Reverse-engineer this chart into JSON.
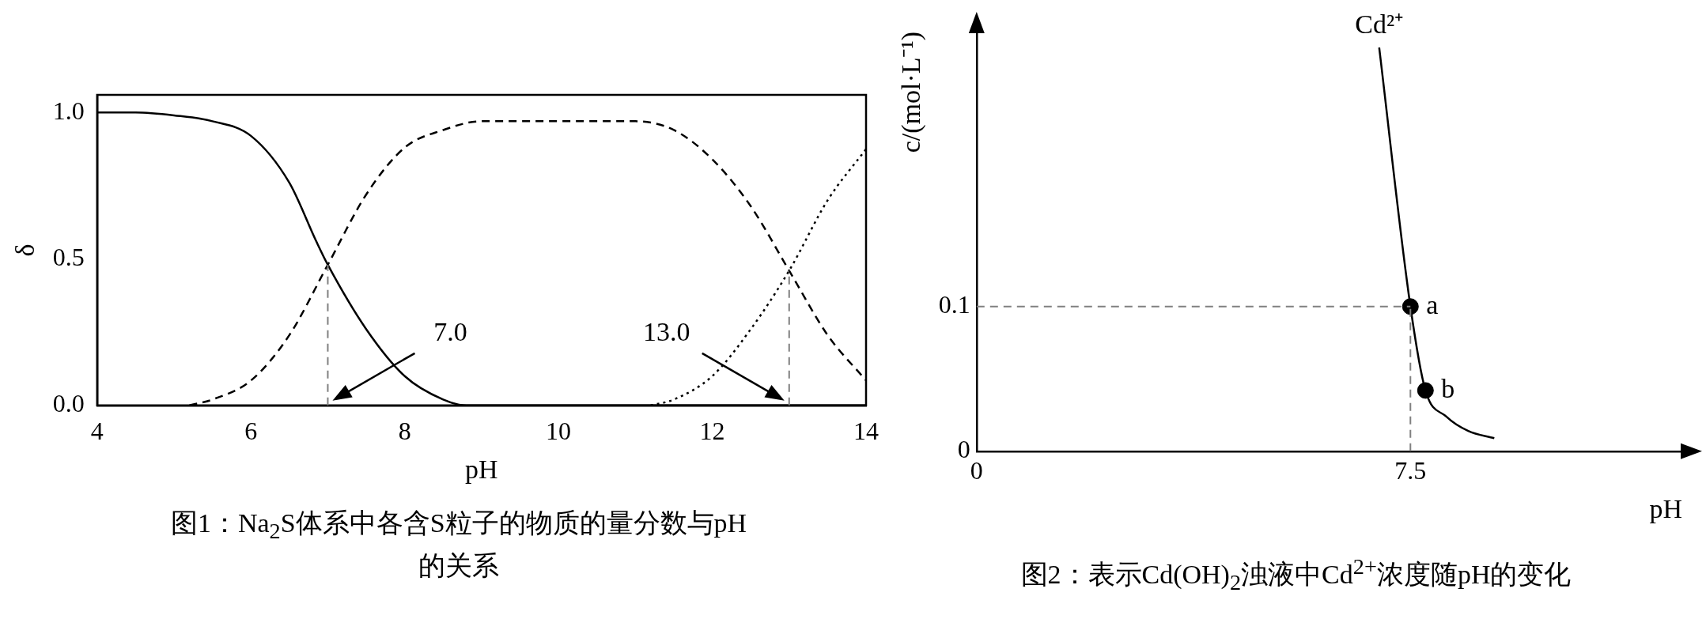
{
  "chart_data": [
    {
      "type": "line",
      "title": "图1：Na$_{2}$S体系中各含S粒子的物质的量分数与pH的关系",
      "xlabel": "pH",
      "ylabel": "δ",
      "xlim": [
        4,
        14
      ],
      "xticks": [
        4,
        6,
        8,
        10,
        12,
        14
      ],
      "ylim": [
        0,
        1.06
      ],
      "yticks": [
        {
          "value": 0,
          "label": "0.0"
        },
        {
          "value": 0.5,
          "label": "0.5"
        },
        {
          "value": 1,
          "label": "1.0"
        }
      ],
      "grid": false,
      "legend": false,
      "series": [
        {
          "color": "#000000",
          "line_style": "solid",
          "x": [
            4,
            4.5,
            5,
            5.5,
            6,
            6.5,
            6.85,
            7,
            7.5,
            8,
            8.5,
            8.8,
            9,
            10,
            11,
            12,
            13,
            14
          ],
          "values": [
            1,
            1,
            0.99,
            0.97,
            0.92,
            0.76,
            0.56,
            0.48,
            0.26,
            0.1,
            0.02,
            0,
            0,
            0,
            0,
            0,
            0,
            0
          ]
        },
        {
          "color": "#000000",
          "line_style": "dashed",
          "x": [
            5.2,
            5.5,
            6,
            6.5,
            7,
            7.5,
            8,
            8.5,
            9,
            10,
            11,
            11.5,
            12,
            12.5,
            13,
            13.5,
            14
          ],
          "values": [
            0,
            0.02,
            0.085,
            0.24,
            0.48,
            0.72,
            0.88,
            0.94,
            0.97,
            0.97,
            0.97,
            0.94,
            0.84,
            0.68,
            0.46,
            0.24,
            0.085
          ]
        },
        {
          "color": "#000000",
          "line_style": "dotted",
          "x": [
            11.2,
            11.5,
            12,
            12.5,
            13,
            13.5,
            14
          ],
          "values": [
            0,
            0.02,
            0.1,
            0.26,
            0.46,
            0.7,
            0.875
          ]
        }
      ],
      "ref_lines": [
        {
          "axis": "x",
          "value": 7,
          "color": "#808080",
          "line_style": "dashed"
        },
        {
          "axis": "x",
          "value": 13,
          "color": "#808080",
          "line_style": "dashed"
        }
      ],
      "annotations": [
        "7.0",
        "13.0"
      ]
    },
    {
      "type": "line",
      "title": "图2：表示Cd(OH)$_{2}$浊液中Cd$^{2+}$浓度随pH的变化",
      "xlabel": "pH",
      "ylabel": "c/(mol·L⁻¹)",
      "xlim": [
        0,
        12.2
      ],
      "xticks": [
        0,
        7.5
      ],
      "ylim": [
        0,
        0.29
      ],
      "yticks": [
        0,
        0.1
      ],
      "grid": false,
      "legend": false,
      "series": [
        {
          "name": "Cd²⁺",
          "color": "#000000",
          "line_style": "solid",
          "x": [
            6.96,
            7.5,
            7.76,
            8.12,
            8.5,
            8.95
          ],
          "values": [
            0.279,
            0.1,
            0.042,
            0.024,
            0.014,
            0.009
          ]
        },
        {
          "type": "scatter",
          "color": "#000000",
          "marker": "circle",
          "x": [
            7.5,
            7.76
          ],
          "values": [
            0.1,
            0.042
          ]
        }
      ],
      "ref_lines": [
        {
          "axis": "y",
          "value": 0.1,
          "color": "#808080",
          "line_style": "dashed"
        },
        {
          "axis": "x",
          "value": 7.5,
          "color": "#808080",
          "line_style": "dashed"
        }
      ],
      "annotations": [
        {
          "text": "a",
          "x": 7.5,
          "y": 0.1
        },
        {
          "text": "b",
          "x": 7.76,
          "y": 0.042
        }
      ]
    }
  ]
}
